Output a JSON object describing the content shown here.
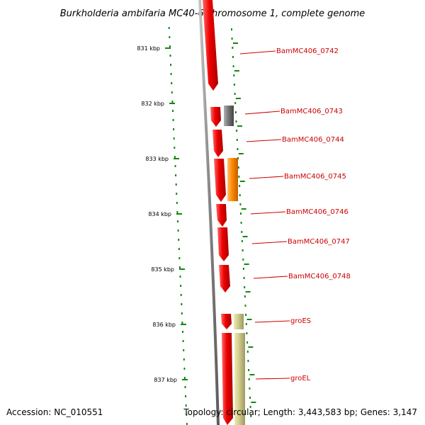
{
  "title": "Burkholderia ambifaria MC40-6 chromosome 1, complete genome",
  "accession": "Accession: NC_010551",
  "summary": "Topology: circular; Length: 3,443,583 bp; Genes: 3,147",
  "scale": {
    "labels": [
      "831 kbp",
      "832 kbp",
      "833 kbp",
      "834 kbp",
      "835 kbp",
      "836 kbp",
      "837 kbp"
    ]
  },
  "genes": [
    {
      "name": "BamMC406_0742",
      "color": "#ee0000"
    },
    {
      "name": "BamMC406_0743",
      "color": "#777777"
    },
    {
      "name": "BamMC406_0744",
      "color": "#ee0000"
    },
    {
      "name": "BamMC406_0745",
      "color": "#ff8800"
    },
    {
      "name": "BamMC406_0746",
      "color": "#ee0000"
    },
    {
      "name": "BamMC406_0747",
      "color": "#ee0000"
    },
    {
      "name": "BamMC406_0748",
      "color": "#ee0000"
    },
    {
      "name": "groES",
      "color": "#bdb76b"
    },
    {
      "name": "groEL",
      "color": "#bdb76b"
    }
  ],
  "colors": {
    "cds": "#ee0000",
    "other": "#777777",
    "rna": "#ff8800",
    "chaperone": "#bdb76b",
    "tick": "#118811",
    "backbone": "#888888",
    "label": "#cc0000"
  }
}
